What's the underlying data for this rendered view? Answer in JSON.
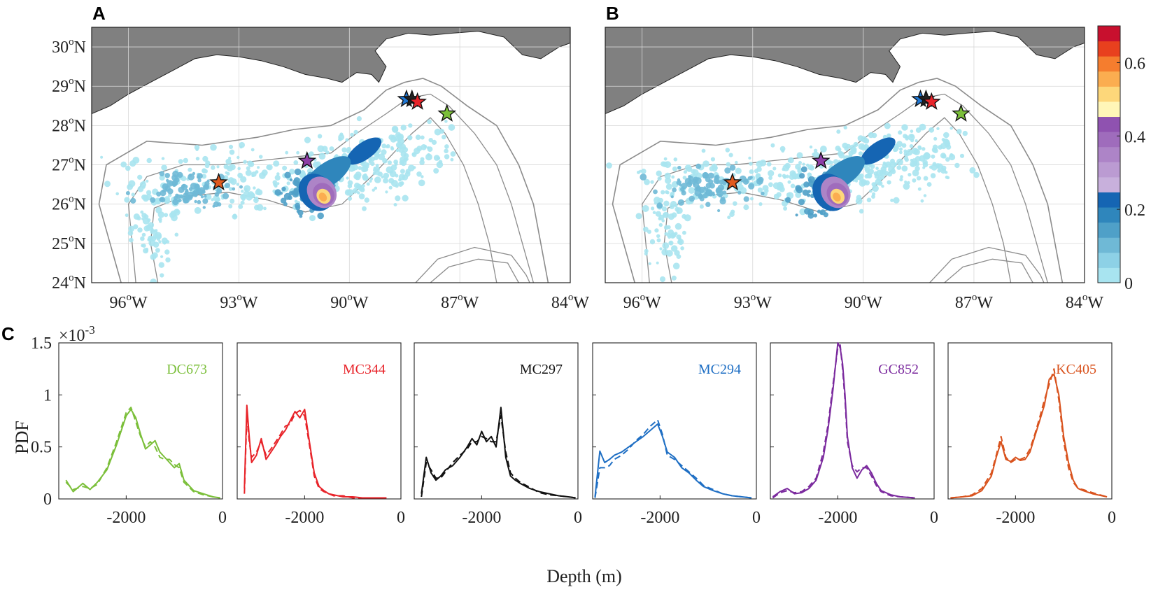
{
  "panels": {
    "a": "A",
    "b": "B",
    "c": "C"
  },
  "maps": {
    "lat_ticks": [
      "24",
      "25",
      "26",
      "27",
      "28",
      "29",
      "30"
    ],
    "lon_ticks": [
      "96",
      "93",
      "90",
      "87",
      "84"
    ],
    "lat_suffix": "N",
    "lon_suffix": "W",
    "degree_symbol": "o",
    "lat_range": [
      24,
      30.5
    ],
    "lon_range": [
      -97,
      -84
    ],
    "colorbar": {
      "ticks": [
        "0",
        "0.2",
        "0.4",
        "0.6"
      ],
      "range": [
        0,
        0.7
      ],
      "colors": [
        "#a8e4f0",
        "#8dd1e6",
        "#6fb9d6",
        "#4fa0c8",
        "#2f86bc",
        "#1565b3",
        "#c8b0dc",
        "#bb9bd2",
        "#ad84c7",
        "#9f6cbc",
        "#8f52b0",
        "#fff6b8",
        "#fdd77a",
        "#fbad50",
        "#f57d2e",
        "#e8401e",
        "#c8102e"
      ]
    },
    "sites_common": [
      {
        "name": "MC294",
        "lon": -88.45,
        "lat": 28.67,
        "color": "#1f77d4"
      },
      {
        "name": "MC297",
        "lon": -88.3,
        "lat": 28.67,
        "color": "#222222"
      },
      {
        "name": "MC344",
        "lon": -88.15,
        "lat": 28.6,
        "color": "#e8242a"
      },
      {
        "name": "DC673",
        "lon": -87.35,
        "lat": 28.3,
        "color": "#7bbf3a"
      },
      {
        "name": "GC852",
        "lon": -91.15,
        "lat": 27.1,
        "color": "#8e3ea7"
      },
      {
        "name": "KC405",
        "lon": -93.55,
        "lat": 26.55,
        "color": "#e05a1e"
      }
    ]
  },
  "chart_data": [
    {
      "type": "line",
      "title": "DC673",
      "color": "#7bbf3a",
      "xlabel": "Depth (m)",
      "ylabel": "PDF",
      "xlim": [
        -3400,
        0
      ],
      "ylim": [
        0,
        1.5
      ],
      "x_ticks": [
        "-2000",
        "0"
      ],
      "y_ticks": [
        "0",
        "0.5",
        "1",
        "1.5"
      ],
      "y_scale_label": "×10",
      "y_scale_exp": "-3",
      "series": [
        {
          "name": "solid",
          "x": [
            -3250,
            -3100,
            -2900,
            -2750,
            -2600,
            -2400,
            -2200,
            -2000,
            -1900,
            -1800,
            -1700,
            -1600,
            -1500,
            -1400,
            -1300,
            -1200,
            -1100,
            -1000,
            -900,
            -800,
            -600,
            -400,
            -200,
            -50
          ],
          "y": [
            0.18,
            0.07,
            0.15,
            0.09,
            0.16,
            0.28,
            0.52,
            0.8,
            0.86,
            0.78,
            0.62,
            0.48,
            0.52,
            0.56,
            0.45,
            0.4,
            0.35,
            0.3,
            0.34,
            0.18,
            0.08,
            0.05,
            0.02,
            0.01
          ]
        },
        {
          "name": "dashed",
          "x": [
            -3250,
            -3100,
            -2900,
            -2750,
            -2600,
            -2400,
            -2200,
            -2000,
            -1900,
            -1800,
            -1700,
            -1600,
            -1500,
            -1400,
            -1300,
            -1200,
            -1100,
            -1000,
            -900,
            -800,
            -600,
            -400,
            -200,
            -50
          ],
          "y": [
            0.16,
            0.09,
            0.12,
            0.1,
            0.14,
            0.3,
            0.55,
            0.83,
            0.88,
            0.74,
            0.6,
            0.5,
            0.55,
            0.5,
            0.4,
            0.38,
            0.38,
            0.33,
            0.3,
            0.16,
            0.07,
            0.04,
            0.02,
            0.01
          ]
        }
      ]
    },
    {
      "type": "line",
      "title": "MC344",
      "color": "#e8242a",
      "xlabel": "Depth (m)",
      "ylabel": "PDF",
      "xlim": [
        -3400,
        0
      ],
      "ylim": [
        0,
        1.5
      ],
      "x_ticks": [
        "-2000",
        "0"
      ],
      "series": [
        {
          "name": "solid",
          "x": [
            -3250,
            -3200,
            -3150,
            -3100,
            -3000,
            -2900,
            -2800,
            -2700,
            -2600,
            -2500,
            -2400,
            -2300,
            -2200,
            -2100,
            -2000,
            -1900,
            -1800,
            -1700,
            -1600,
            -1500,
            -1400,
            -1200,
            -1000,
            -800,
            -300
          ],
          "y": [
            0.1,
            0.9,
            0.6,
            0.35,
            0.42,
            0.58,
            0.38,
            0.45,
            0.52,
            0.6,
            0.66,
            0.75,
            0.84,
            0.78,
            0.86,
            0.55,
            0.25,
            0.12,
            0.08,
            0.05,
            0.04,
            0.02,
            0.02,
            0.01,
            0.01
          ]
        },
        {
          "name": "dashed",
          "x": [
            -3250,
            -3200,
            -3150,
            -3100,
            -3000,
            -2900,
            -2800,
            -2700,
            -2600,
            -2500,
            -2400,
            -2300,
            -2200,
            -2100,
            -2000,
            -1900,
            -1800,
            -1700,
            -1600,
            -1500,
            -1400,
            -1200,
            -1000,
            -800,
            -300
          ],
          "y": [
            0.05,
            0.8,
            0.55,
            0.4,
            0.45,
            0.55,
            0.42,
            0.48,
            0.55,
            0.62,
            0.7,
            0.72,
            0.82,
            0.85,
            0.8,
            0.52,
            0.22,
            0.1,
            0.07,
            0.05,
            0.03,
            0.03,
            0.01,
            0.01,
            0.01
          ]
        }
      ]
    },
    {
      "type": "line",
      "title": "MC297",
      "color": "#111111",
      "xlabel": "Depth (m)",
      "ylabel": "PDF",
      "xlim": [
        -3400,
        0
      ],
      "ylim": [
        0,
        1.5
      ],
      "x_ticks": [
        "-2000",
        "0"
      ],
      "series": [
        {
          "name": "solid",
          "x": [
            -3250,
            -3150,
            -3050,
            -2950,
            -2850,
            -2750,
            -2600,
            -2450,
            -2300,
            -2200,
            -2100,
            -2000,
            -1900,
            -1800,
            -1700,
            -1600,
            -1500,
            -1400,
            -1300,
            -1200,
            -1000,
            -800,
            -600,
            -400,
            -200,
            -50
          ],
          "y": [
            0.05,
            0.4,
            0.25,
            0.18,
            0.22,
            0.28,
            0.32,
            0.4,
            0.5,
            0.58,
            0.52,
            0.65,
            0.55,
            0.6,
            0.5,
            0.88,
            0.4,
            0.22,
            0.18,
            0.15,
            0.1,
            0.07,
            0.05,
            0.03,
            0.02,
            0.01
          ]
        },
        {
          "name": "dashed",
          "x": [
            -3250,
            -3150,
            -3050,
            -2950,
            -2850,
            -2750,
            -2600,
            -2450,
            -2300,
            -2200,
            -2100,
            -2000,
            -1900,
            -1800,
            -1700,
            -1600,
            -1500,
            -1400,
            -1300,
            -1200,
            -1000,
            -800,
            -600,
            -400,
            -200,
            -50
          ],
          "y": [
            0.02,
            0.35,
            0.28,
            0.2,
            0.2,
            0.26,
            0.35,
            0.42,
            0.48,
            0.55,
            0.55,
            0.6,
            0.58,
            0.55,
            0.55,
            0.8,
            0.45,
            0.25,
            0.2,
            0.16,
            0.11,
            0.06,
            0.04,
            0.03,
            0.02,
            0.01
          ]
        }
      ]
    },
    {
      "type": "line",
      "title": "MC294",
      "color": "#1f6fc4",
      "xlabel": "Depth (m)",
      "ylabel": "PDF",
      "xlim": [
        -3400,
        0
      ],
      "ylim": [
        0,
        1.5
      ],
      "x_ticks": [
        "-2000",
        "0"
      ],
      "series": [
        {
          "name": "solid",
          "x": [
            -3350,
            -3250,
            -3150,
            -3050,
            -2950,
            -2800,
            -2650,
            -2500,
            -2350,
            -2200,
            -2050,
            -1950,
            -1850,
            -1700,
            -1550,
            -1400,
            -1250,
            -1100,
            -900,
            -700,
            -500,
            -300,
            -100
          ],
          "y": [
            0.02,
            0.46,
            0.35,
            0.38,
            0.42,
            0.45,
            0.5,
            0.55,
            0.6,
            0.66,
            0.72,
            0.6,
            0.45,
            0.4,
            0.3,
            0.25,
            0.18,
            0.12,
            0.08,
            0.05,
            0.03,
            0.02,
            0.01
          ]
        },
        {
          "name": "dashed",
          "x": [
            -3350,
            -3250,
            -3150,
            -3050,
            -2950,
            -2800,
            -2650,
            -2500,
            -2350,
            -2200,
            -2050,
            -1950,
            -1850,
            -1700,
            -1550,
            -1400,
            -1250,
            -1100,
            -900,
            -700,
            -500,
            -300,
            -100
          ],
          "y": [
            0.01,
            0.3,
            0.3,
            0.32,
            0.38,
            0.42,
            0.48,
            0.56,
            0.62,
            0.7,
            0.76,
            0.62,
            0.42,
            0.38,
            0.32,
            0.26,
            0.2,
            0.13,
            0.09,
            0.05,
            0.03,
            0.02,
            0.01
          ]
        }
      ]
    },
    {
      "type": "line",
      "title": "GC852",
      "color": "#7b2a9e",
      "xlabel": "Depth (m)",
      "ylabel": "PDF",
      "xlim": [
        -3400,
        0
      ],
      "ylim": [
        0,
        1.5
      ],
      "x_ticks": [
        "-2000",
        "0"
      ],
      "series": [
        {
          "name": "solid",
          "x": [
            -3350,
            -3200,
            -3050,
            -2900,
            -2750,
            -2600,
            -2450,
            -2300,
            -2200,
            -2100,
            -2000,
            -1950,
            -1900,
            -1850,
            -1800,
            -1700,
            -1600,
            -1500,
            -1400,
            -1300,
            -1200,
            -1100,
            -900,
            -700,
            -400
          ],
          "y": [
            0.02,
            0.07,
            0.1,
            0.05,
            0.06,
            0.1,
            0.18,
            0.4,
            0.68,
            1.05,
            1.5,
            1.45,
            1.3,
            1.0,
            0.6,
            0.3,
            0.2,
            0.28,
            0.32,
            0.25,
            0.15,
            0.08,
            0.04,
            0.02,
            0.01
          ]
        },
        {
          "name": "dashed",
          "x": [
            -3350,
            -3200,
            -3050,
            -2900,
            -2750,
            -2600,
            -2450,
            -2300,
            -2200,
            -2100,
            -2000,
            -1950,
            -1900,
            -1850,
            -1800,
            -1700,
            -1600,
            -1500,
            -1400,
            -1300,
            -1200,
            -1100,
            -900,
            -700,
            -400
          ],
          "y": [
            0.01,
            0.06,
            0.08,
            0.06,
            0.07,
            0.12,
            0.2,
            0.45,
            0.72,
            1.1,
            1.45,
            1.48,
            1.25,
            0.95,
            0.55,
            0.32,
            0.26,
            0.3,
            0.3,
            0.22,
            0.13,
            0.07,
            0.03,
            0.02,
            0.01
          ]
        }
      ]
    },
    {
      "type": "line",
      "title": "KC405",
      "color": "#d9531e",
      "xlabel": "Depth (m)",
      "ylabel": "PDF",
      "xlim": [
        -3400,
        0
      ],
      "ylim": [
        0,
        1.5
      ],
      "x_ticks": [
        "-2000",
        "0"
      ],
      "series": [
        {
          "name": "solid",
          "x": [
            -3350,
            -3100,
            -2900,
            -2700,
            -2500,
            -2400,
            -2300,
            -2200,
            -2100,
            -2000,
            -1900,
            -1800,
            -1700,
            -1600,
            -1500,
            -1400,
            -1300,
            -1200,
            -1100,
            -1000,
            -900,
            -800,
            -700,
            -600,
            -400,
            -100
          ],
          "y": [
            0.01,
            0.02,
            0.03,
            0.08,
            0.22,
            0.4,
            0.55,
            0.38,
            0.36,
            0.4,
            0.37,
            0.38,
            0.45,
            0.6,
            0.75,
            0.9,
            1.15,
            1.2,
            1.0,
            0.6,
            0.35,
            0.18,
            0.1,
            0.08,
            0.05,
            0.02
          ]
        },
        {
          "name": "dashed",
          "x": [
            -3350,
            -3100,
            -2900,
            -2700,
            -2500,
            -2400,
            -2300,
            -2200,
            -2100,
            -2000,
            -1900,
            -1800,
            -1700,
            -1600,
            -1500,
            -1400,
            -1300,
            -1200,
            -1100,
            -1000,
            -900,
            -800,
            -700,
            -600,
            -400,
            -100
          ],
          "y": [
            0.01,
            0.02,
            0.04,
            0.1,
            0.25,
            0.42,
            0.6,
            0.4,
            0.35,
            0.38,
            0.38,
            0.4,
            0.48,
            0.62,
            0.78,
            0.95,
            1.1,
            1.25,
            0.95,
            0.55,
            0.3,
            0.16,
            0.1,
            0.09,
            0.06,
            0.02
          ]
        }
      ]
    }
  ]
}
